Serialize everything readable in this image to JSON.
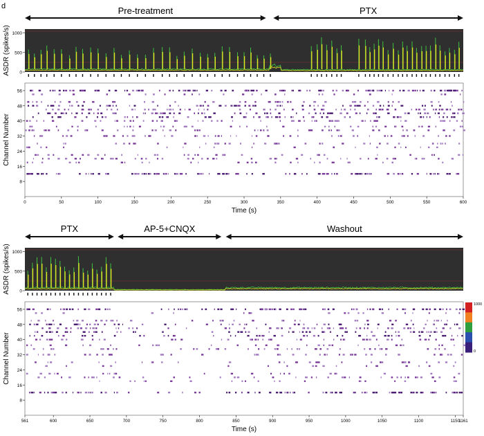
{
  "panel_label": "d",
  "phases_top": [
    {
      "label": "Pre-treatment",
      "x0": 0,
      "x1": 330
    },
    {
      "label": "PTX",
      "x0": 340,
      "x1": 600
    }
  ],
  "phases_bottom": [
    {
      "label": "PTX",
      "x0": 561,
      "x1": 683
    },
    {
      "label": "AP-5+CNQX",
      "x0": 688,
      "x1": 830
    },
    {
      "label": "Washout",
      "x0": 836,
      "x1": 1161
    }
  ],
  "colorbar": {
    "max_label": "1000",
    "min_label": "0",
    "colors": [
      "#d32020",
      "#f08020",
      "#2e9e3e",
      "#2a4fb0",
      "#3a1f7a"
    ]
  },
  "chart_data": [
    {
      "type": "line",
      "title": "",
      "ylabel": "ASDR (spikes/s)",
      "xlim": [
        0,
        600
      ],
      "ylim": [
        0,
        1100
      ],
      "yticks": [
        "0",
        "500",
        "1000"
      ],
      "series": [],
      "bursts_top_x": [
        5,
        13,
        22,
        30,
        40,
        50,
        61,
        70,
        79,
        90,
        100,
        111,
        122,
        132,
        143,
        154,
        165,
        176,
        188,
        198,
        208,
        218,
        229,
        240,
        250,
        260,
        270,
        280,
        291,
        300,
        309,
        318,
        327,
        336,
        392,
        400,
        406,
        413,
        420,
        427,
        433,
        457,
        466,
        472,
        478,
        484,
        490,
        497,
        504,
        511,
        517,
        523,
        530,
        536,
        543,
        549,
        555,
        562,
        568,
        575,
        581,
        588,
        594
      ]
    },
    {
      "type": "heatmap",
      "xlabel": "Time (s)",
      "ylabel": "Channel Number",
      "xlim": [
        0,
        600
      ],
      "xticks": [
        "0",
        "50",
        "100",
        "150",
        "200",
        "250",
        "300",
        "350",
        "400",
        "450",
        "500",
        "550",
        "600"
      ],
      "yticks": [
        "8",
        "16",
        "24",
        "32",
        "40",
        "48",
        "56"
      ]
    },
    {
      "type": "line",
      "ylabel": "ASDR (spikes/s)",
      "xlim": [
        561,
        1161
      ],
      "ylim": [
        0,
        1100
      ],
      "yticks": [
        "0",
        "500",
        "1000"
      ],
      "series": []
    },
    {
      "type": "heatmap",
      "xlabel": "Time (s)",
      "ylabel": "Channel Number",
      "xlim": [
        561,
        1161
      ],
      "xticks": [
        "561",
        "600",
        "650",
        "700",
        "750",
        "800",
        "850",
        "900",
        "950",
        "1000",
        "1050",
        "1100",
        "1150",
        "1161"
      ],
      "yticks": [
        "8",
        "16",
        "24",
        "32",
        "40",
        "48",
        "56"
      ]
    }
  ]
}
